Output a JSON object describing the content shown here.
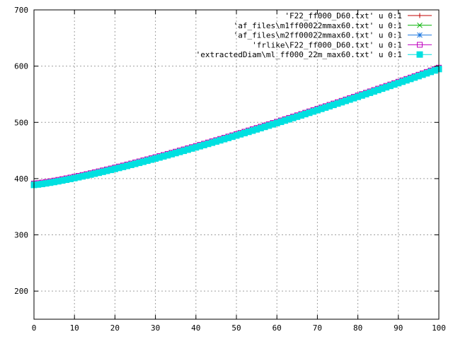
{
  "chart_data": {
    "type": "line",
    "xlim": [
      0,
      100
    ],
    "ylim": [
      150,
      700
    ],
    "xticks": [
      0,
      10,
      20,
      30,
      40,
      50,
      60,
      70,
      80,
      90,
      100
    ],
    "yticks": [
      200,
      300,
      400,
      500,
      600,
      700
    ],
    "grid": true,
    "legend_position": "top-right",
    "curve": {
      "start": 390,
      "end": 596,
      "exponent": 1.23
    },
    "series": [
      {
        "name": "'F22_ff000_D60.txt' u 0:1",
        "color": "#c00000",
        "marker": "plus"
      },
      {
        "name": "'af_files\\m1ff00022mmax60.txt' u 0:1",
        "color": "#00b000",
        "marker": "cross"
      },
      {
        "name": "'af_files\\m2ff00022mmax60.txt' u 0:1",
        "color": "#1e78e0",
        "marker": "star"
      },
      {
        "name": "'frlike\\F22_ff000_D60.txt' u 0:1",
        "color": "#c000c0",
        "marker": "square-open"
      },
      {
        "name": "'extractedDiam\\ml_ff000_22m_max60.txt' u 0:1",
        "color": "#00e0e0",
        "marker": "square-filled"
      }
    ]
  }
}
